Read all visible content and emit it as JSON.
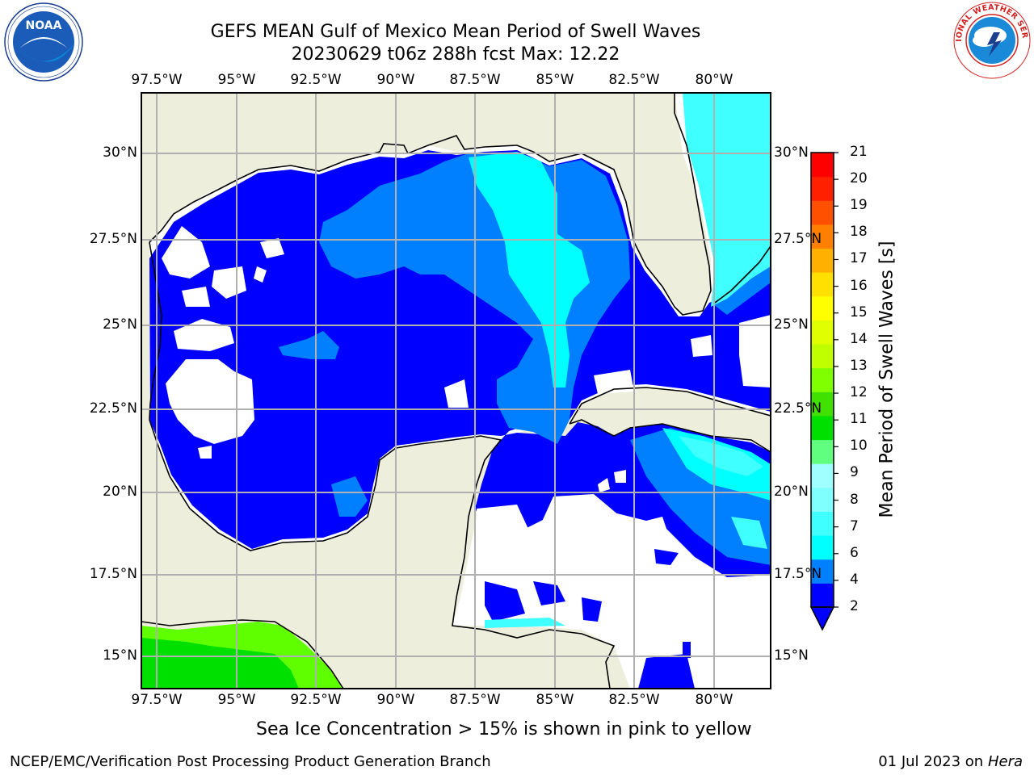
{
  "header": {
    "title_line1": "GEFS MEAN Gulf of Mexico Mean Period of Swell Waves",
    "title_line2": "20230629 t06z 288h fcst   Max: 12.22"
  },
  "logos": {
    "noaa_text": "NOAA",
    "noaa_ring": "NATIONAL OCEANIC AND ATMOSPHERIC ADMINISTRATION · U.S. DEPARTMENT OF COMMERCE",
    "nws_ring": "NATIONAL WEATHER SERVICE"
  },
  "map": {
    "lon_ticks": [
      "97.5°W",
      "95°W",
      "92.5°W",
      "90°W",
      "87.5°W",
      "85°W",
      "82.5°W",
      "80°W"
    ],
    "lat_ticks_left": [
      "30°N",
      "27.5°N",
      "25°N",
      "22.5°N",
      "20°N",
      "17.5°N",
      "15°N"
    ],
    "lat_ticks_right": [
      "30°N",
      "27.5°N",
      "25°N",
      "22.5°N",
      "20°N",
      "17.5°N",
      "15°N"
    ],
    "lon_range": [
      -98,
      -79
    ],
    "lat_range": [
      14,
      32
    ],
    "land_color": "#eeeedd",
    "grid_color": "#b0b0b0"
  },
  "colorbar": {
    "label": "Mean Period of Swell Waves [s]",
    "ticks": [
      "21",
      "20",
      "19",
      "18",
      "17",
      "16",
      "15",
      "14",
      "13",
      "12",
      "11",
      "10",
      "9",
      "8",
      "7",
      "6",
      "4",
      "2"
    ],
    "colors": [
      "#0000ff",
      "#0080ff",
      "#00ffff",
      "#40ffff",
      "#80ffff",
      "#a0ffff",
      "#60ff80",
      "#00e000",
      "#40e000",
      "#80ff00",
      "#c0ff00",
      "#e0ff00",
      "#ffff00",
      "#ffe000",
      "#ffb000",
      "#ff8000",
      "#ff5000",
      "#ff2000",
      "#ff0000"
    ]
  },
  "footer": {
    "note": "Sea Ice Concentration > 15% is shown in pink to yellow",
    "left": "NCEP/EMC/Verification Post Processing Product Generation Branch",
    "right_prefix": "01 Jul 2023 on ",
    "right_host": "Hera"
  }
}
